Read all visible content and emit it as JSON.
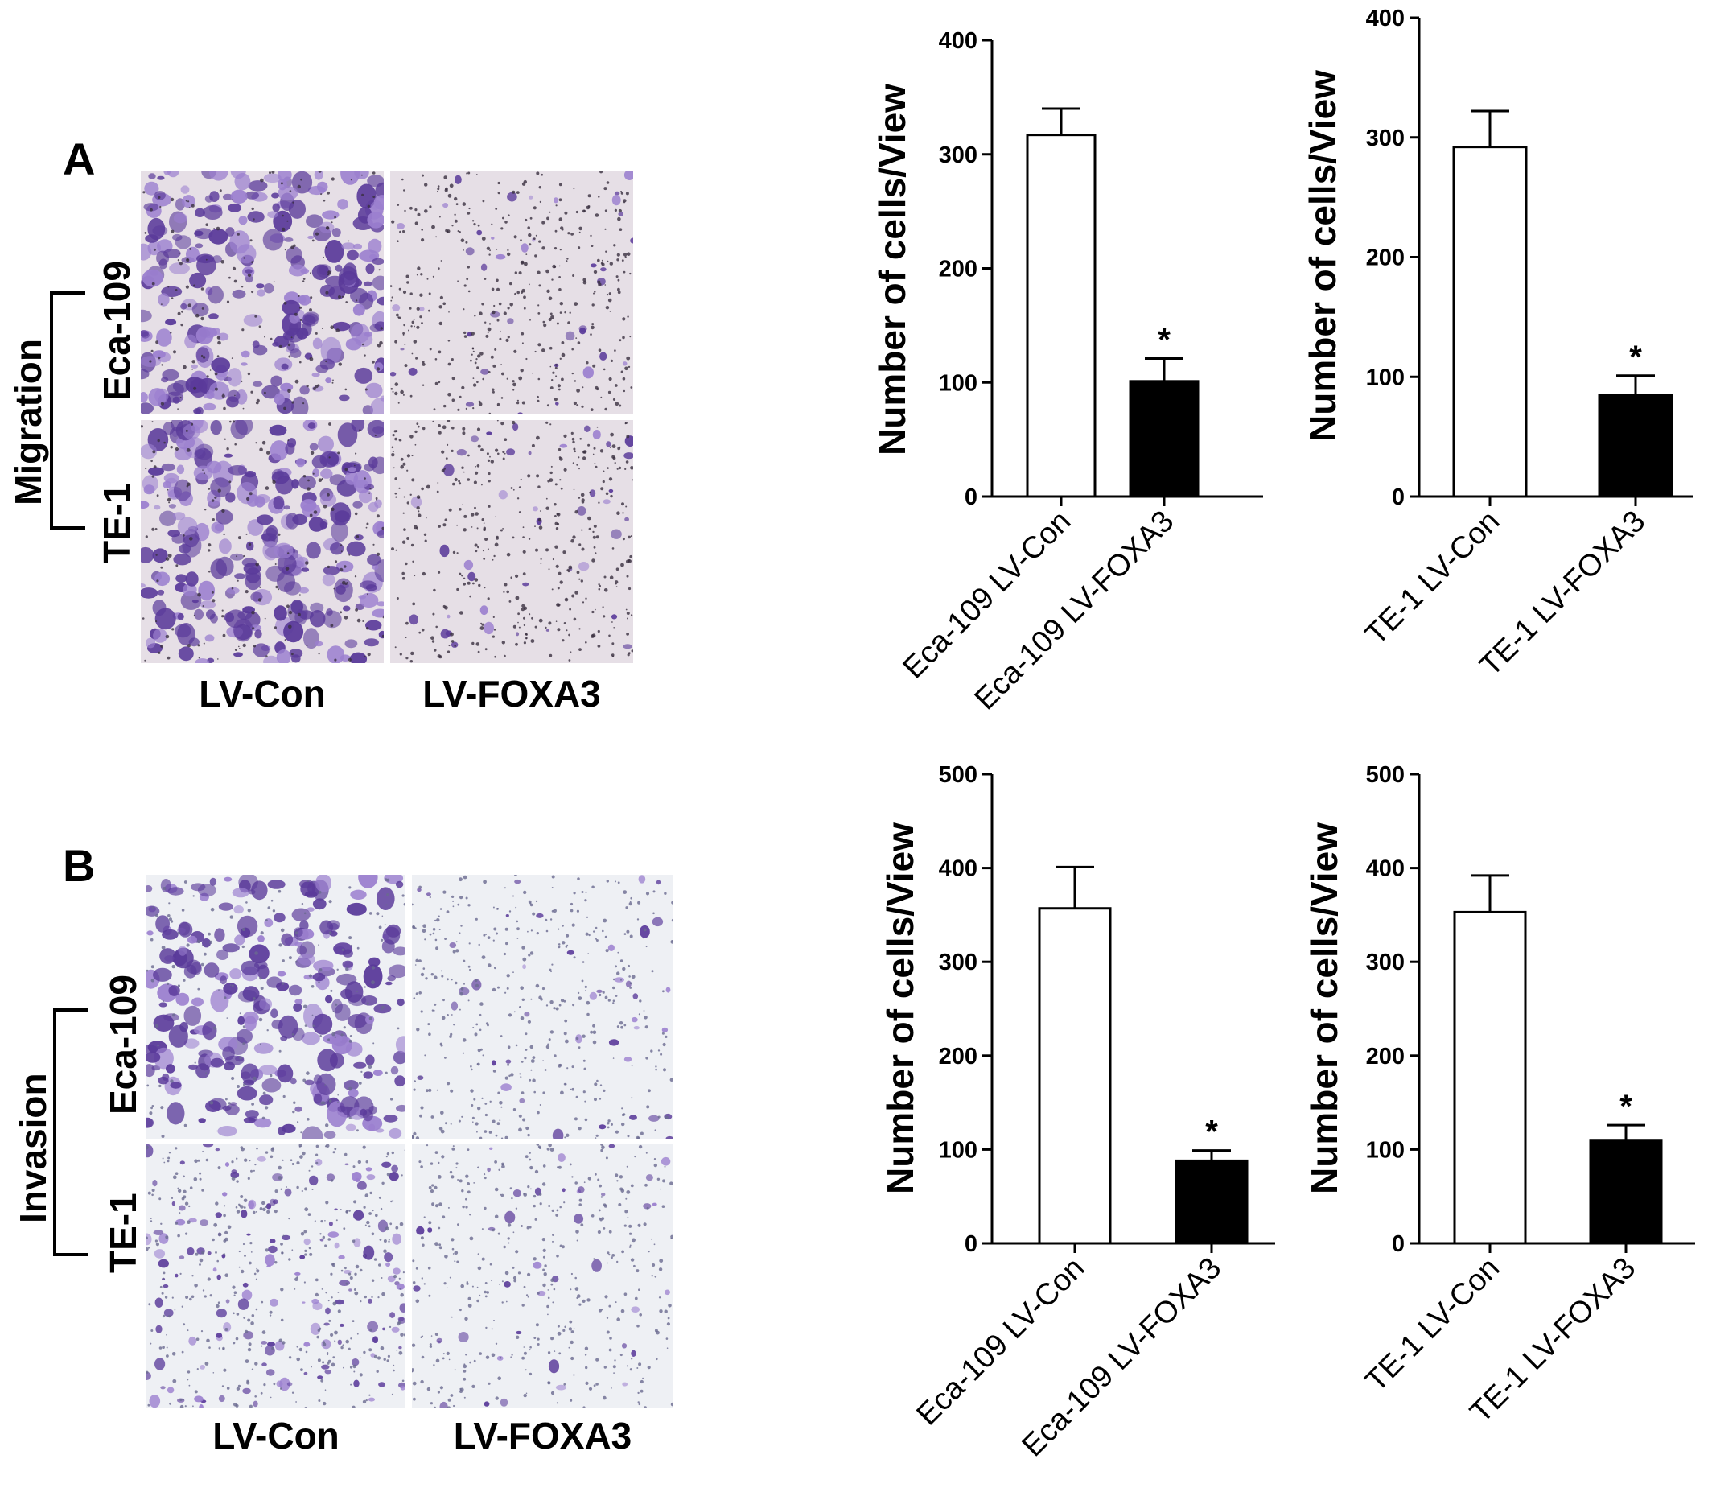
{
  "panels": {
    "A": {
      "letter": "A",
      "group_label": "Migration",
      "row_labels": [
        "Eca-109",
        "TE-1"
      ],
      "col_labels": [
        "LV-Con",
        "LV-FOXA3"
      ]
    },
    "B": {
      "letter": "B",
      "group_label": "Invasion",
      "row_labels": [
        "Eca-109",
        "TE-1"
      ],
      "col_labels": [
        "LV-Con",
        "LV-FOXA3"
      ]
    }
  },
  "colors": {
    "stain_dark": "#5a3a9a",
    "stain_light": "#9b7fcf",
    "bg_migration": "#e6dfe6",
    "bg_invasion": "#eef0f4",
    "bar_control": "#ffffff",
    "bar_treated": "#000000"
  },
  "chart_data": [
    {
      "type": "bar",
      "ylabel": "Number of cells/View",
      "categories": [
        "Eca-109 LV-Con",
        "Eca-109 LV-FOXA3"
      ],
      "values": [
        317,
        101
      ],
      "errors": [
        23,
        20
      ],
      "significance": [
        "",
        "*"
      ],
      "ylim": [
        0,
        400
      ],
      "yticks": [
        0,
        100,
        200,
        300,
        400
      ]
    },
    {
      "type": "bar",
      "ylabel": "Number of cells/View",
      "categories": [
        "TE-1 LV-Con",
        "TE-1 LV-FOXA3"
      ],
      "values": [
        292,
        85
      ],
      "errors": [
        30,
        16
      ],
      "significance": [
        "",
        "*"
      ],
      "ylim": [
        0,
        400
      ],
      "yticks": [
        0,
        100,
        200,
        300,
        400
      ]
    },
    {
      "type": "bar",
      "ylabel": "Number of cells/View",
      "categories": [
        "Eca-109 LV-Con",
        "Eca-109 LV-FOXA3"
      ],
      "values": [
        357,
        88
      ],
      "errors": [
        44,
        11
      ],
      "significance": [
        "",
        "*"
      ],
      "ylim": [
        0,
        500
      ],
      "yticks": [
        0,
        100,
        200,
        300,
        400,
        500
      ]
    },
    {
      "type": "bar",
      "ylabel": "Number of cells/View",
      "categories": [
        "TE-1 LV-Con",
        "TE-1 LV-FOXA3"
      ],
      "values": [
        353,
        110
      ],
      "errors": [
        39,
        16
      ],
      "significance": [
        "",
        "*"
      ],
      "ylim": [
        0,
        500
      ],
      "yticks": [
        0,
        100,
        200,
        300,
        400,
        500
      ]
    }
  ]
}
